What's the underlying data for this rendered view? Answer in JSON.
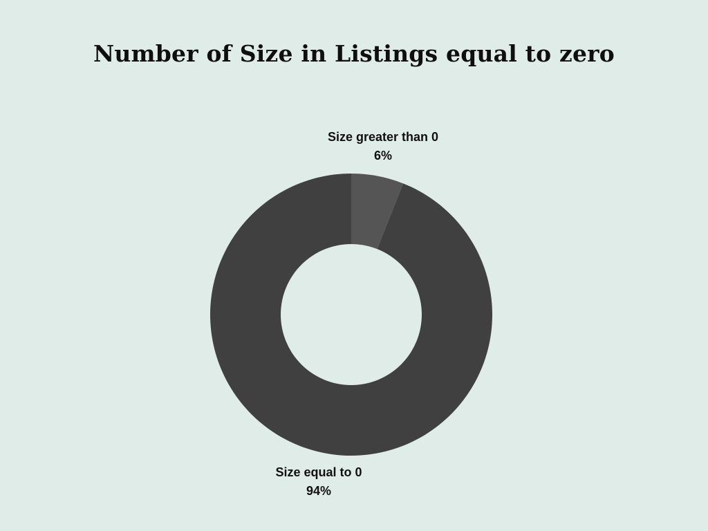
{
  "chart_data": {
    "type": "pie",
    "title": "Number of Size in Listings equal to zero",
    "donut": true,
    "slices": [
      {
        "label": "Size greater than 0",
        "value": 6,
        "value_label": "6%",
        "color": "#555555"
      },
      {
        "label": "Size equal to 0",
        "value": 94,
        "value_label": "94%",
        "color": "#404040"
      }
    ]
  }
}
